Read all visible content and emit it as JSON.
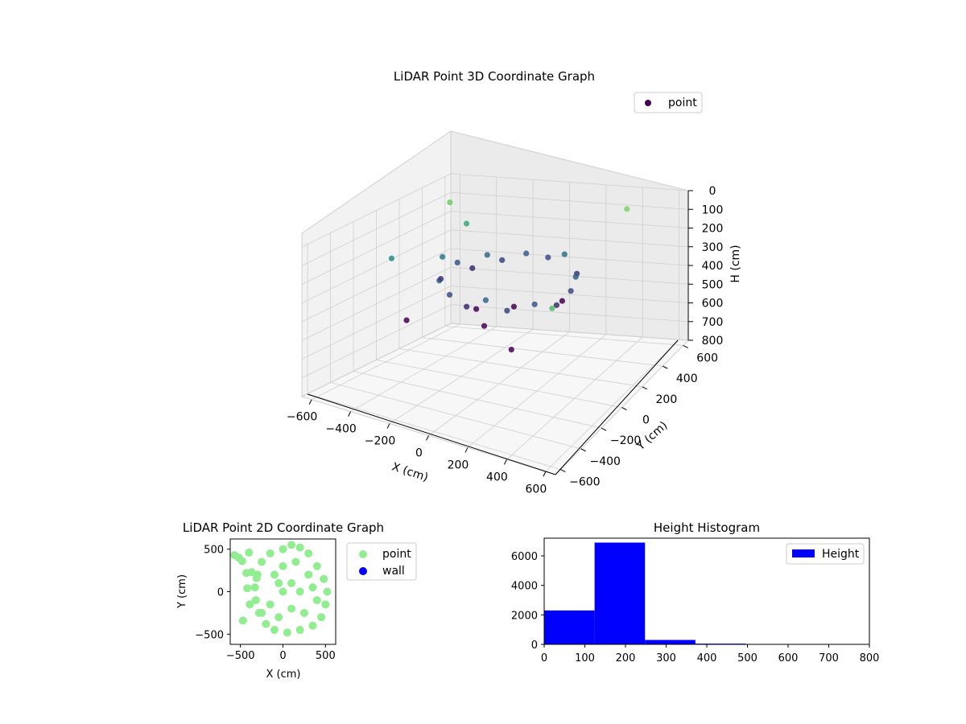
{
  "chart_data": [
    {
      "type": "scatter",
      "title": "LiDAR Point 3D Coordinate Graph",
      "projection": "3d",
      "xlabel": "X (cm)",
      "ylabel": "Y (cm)",
      "zlabel": "H (cm)",
      "xlim": [
        -650,
        650
      ],
      "ylim": [
        -650,
        650
      ],
      "zlim": [
        800,
        0
      ],
      "x_ticks": [
        "−600",
        "−400",
        "−200",
        "0",
        "200",
        "400",
        "600"
      ],
      "y_ticks": [
        "−600",
        "−400",
        "−200",
        "0",
        "200",
        "400",
        "600"
      ],
      "z_ticks": [
        "0",
        "100",
        "200",
        "300",
        "400",
        "500",
        "600",
        "700",
        "800"
      ],
      "legend": [
        "point"
      ],
      "legend_position": "top-right",
      "colormap": "viridis",
      "grid": true,
      "series": [
        {
          "name": "point",
          "color": "#440154",
          "points": [
            {
              "x": -300,
              "y": 0,
              "h": 180
            },
            {
              "x": -250,
              "y": 50,
              "h": 220
            },
            {
              "x": -200,
              "y": 100,
              "h": 260
            },
            {
              "x": -150,
              "y": 150,
              "h": 200
            },
            {
              "x": -100,
              "y": 200,
              "h": 240
            },
            {
              "x": 0,
              "y": 250,
              "h": 210
            },
            {
              "x": 100,
              "y": 280,
              "h": 230
            },
            {
              "x": 200,
              "y": 260,
              "h": 190
            },
            {
              "x": 300,
              "y": 200,
              "h": 250
            },
            {
              "x": 350,
              "y": 100,
              "h": 210
            },
            {
              "x": 380,
              "y": 0,
              "h": 230
            },
            {
              "x": 360,
              "y": -100,
              "h": 260
            },
            {
              "x": 300,
              "y": -200,
              "h": 220
            },
            {
              "x": 200,
              "y": -280,
              "h": 240
            },
            {
              "x": 100,
              "y": -300,
              "h": 200
            },
            {
              "x": 0,
              "y": -300,
              "h": 260
            },
            {
              "x": -100,
              "y": -280,
              "h": 230
            },
            {
              "x": -200,
              "y": -200,
              "h": 210
            },
            {
              "x": -250,
              "y": -100,
              "h": 250
            },
            {
              "x": 50,
              "y": 50,
              "h": 400
            },
            {
              "x": -50,
              "y": -50,
              "h": 480
            },
            {
              "x": 150,
              "y": -150,
              "h": 520
            },
            {
              "x": -150,
              "y": 50,
              "h": 450
            },
            {
              "x": 250,
              "y": 150,
              "h": 380
            },
            {
              "x": -350,
              "y": 300,
              "h": 120
            },
            {
              "x": -450,
              "y": -200,
              "h": 150
            },
            {
              "x": -500,
              "y": 400,
              "h": 60
            },
            {
              "x": 400,
              "y": 500,
              "h": 40
            },
            {
              "x": 500,
              "y": -400,
              "h": 90
            },
            {
              "x": -550,
              "y": 100,
              "h": 600
            }
          ]
        }
      ]
    },
    {
      "type": "scatter",
      "title": "LiDAR Point 2D Coordinate Graph",
      "xlabel": "X (cm)",
      "ylabel": "Y (cm)",
      "xlim": [
        -620,
        620
      ],
      "ylim": [
        -620,
        620
      ],
      "x_ticks": [
        "−500",
        "0",
        "500"
      ],
      "y_ticks": [
        "500",
        "0",
        "−500"
      ],
      "legend": [
        "point",
        "wall"
      ],
      "legend_position": "outside-right",
      "series": [
        {
          "name": "point",
          "color": "#90ee90",
          "points": [
            {
              "x": 0,
              "y": 500
            },
            {
              "x": 100,
              "y": 550
            },
            {
              "x": 200,
              "y": 520
            },
            {
              "x": 300,
              "y": 450
            },
            {
              "x": 400,
              "y": 300
            },
            {
              "x": 480,
              "y": 150
            },
            {
              "x": 520,
              "y": 0
            },
            {
              "x": 500,
              "y": -150
            },
            {
              "x": 450,
              "y": -300
            },
            {
              "x": 350,
              "y": -400
            },
            {
              "x": 200,
              "y": -450
            },
            {
              "x": 50,
              "y": -480
            },
            {
              "x": -100,
              "y": -450
            },
            {
              "x": -200,
              "y": -380
            },
            {
              "x": -280,
              "y": -250
            },
            {
              "x": -320,
              "y": -100
            },
            {
              "x": -330,
              "y": 50
            },
            {
              "x": -300,
              "y": 200
            },
            {
              "x": -250,
              "y": 350
            },
            {
              "x": -150,
              "y": 450
            },
            {
              "x": 0,
              "y": 0
            },
            {
              "x": 100,
              "y": 100
            },
            {
              "x": 200,
              "y": 0
            },
            {
              "x": 100,
              "y": -200
            },
            {
              "x": -100,
              "y": 200
            },
            {
              "x": -150,
              "y": -150
            },
            {
              "x": 300,
              "y": 200
            },
            {
              "x": 250,
              "y": -250
            },
            {
              "x": -50,
              "y": -300
            },
            {
              "x": 0,
              "y": 300
            },
            {
              "x": -570,
              "y": 430
            },
            {
              "x": -520,
              "y": 400
            },
            {
              "x": -480,
              "y": 360
            },
            {
              "x": -430,
              "y": 220
            },
            {
              "x": -370,
              "y": 230
            },
            {
              "x": -310,
              "y": 160
            },
            {
              "x": -420,
              "y": 40
            },
            {
              "x": -470,
              "y": -340
            },
            {
              "x": -390,
              "y": -150
            },
            {
              "x": -400,
              "y": 460
            },
            {
              "x": -250,
              "y": -250
            },
            {
              "x": 350,
              "y": 50
            },
            {
              "x": 400,
              "y": -100
            },
            {
              "x": -50,
              "y": 100
            },
            {
              "x": 150,
              "y": 350
            }
          ]
        },
        {
          "name": "wall",
          "color": "#0000ff",
          "points": []
        }
      ]
    },
    {
      "type": "bar",
      "title": "Height Histogram",
      "xlabel": "",
      "ylabel": "",
      "xlim": [
        0,
        800
      ],
      "ylim": [
        0,
        7200
      ],
      "x_ticks": [
        "0",
        "100",
        "200",
        "300",
        "400",
        "500",
        "600",
        "700",
        "800"
      ],
      "y_ticks": [
        "0",
        "2000",
        "4000",
        "6000"
      ],
      "legend": [
        "Height"
      ],
      "legend_position": "top-right",
      "series": [
        {
          "name": "Height",
          "color": "#0000ff",
          "bins": [
            [
              0,
              124
            ],
            [
              124,
              248
            ],
            [
              248,
              372
            ],
            [
              372,
              496
            ],
            [
              496,
              620
            ],
            [
              620,
              744
            ],
            [
              744,
              800
            ]
          ],
          "values": [
            2300,
            6900,
            300,
            50,
            10,
            5,
            3
          ]
        }
      ]
    }
  ]
}
